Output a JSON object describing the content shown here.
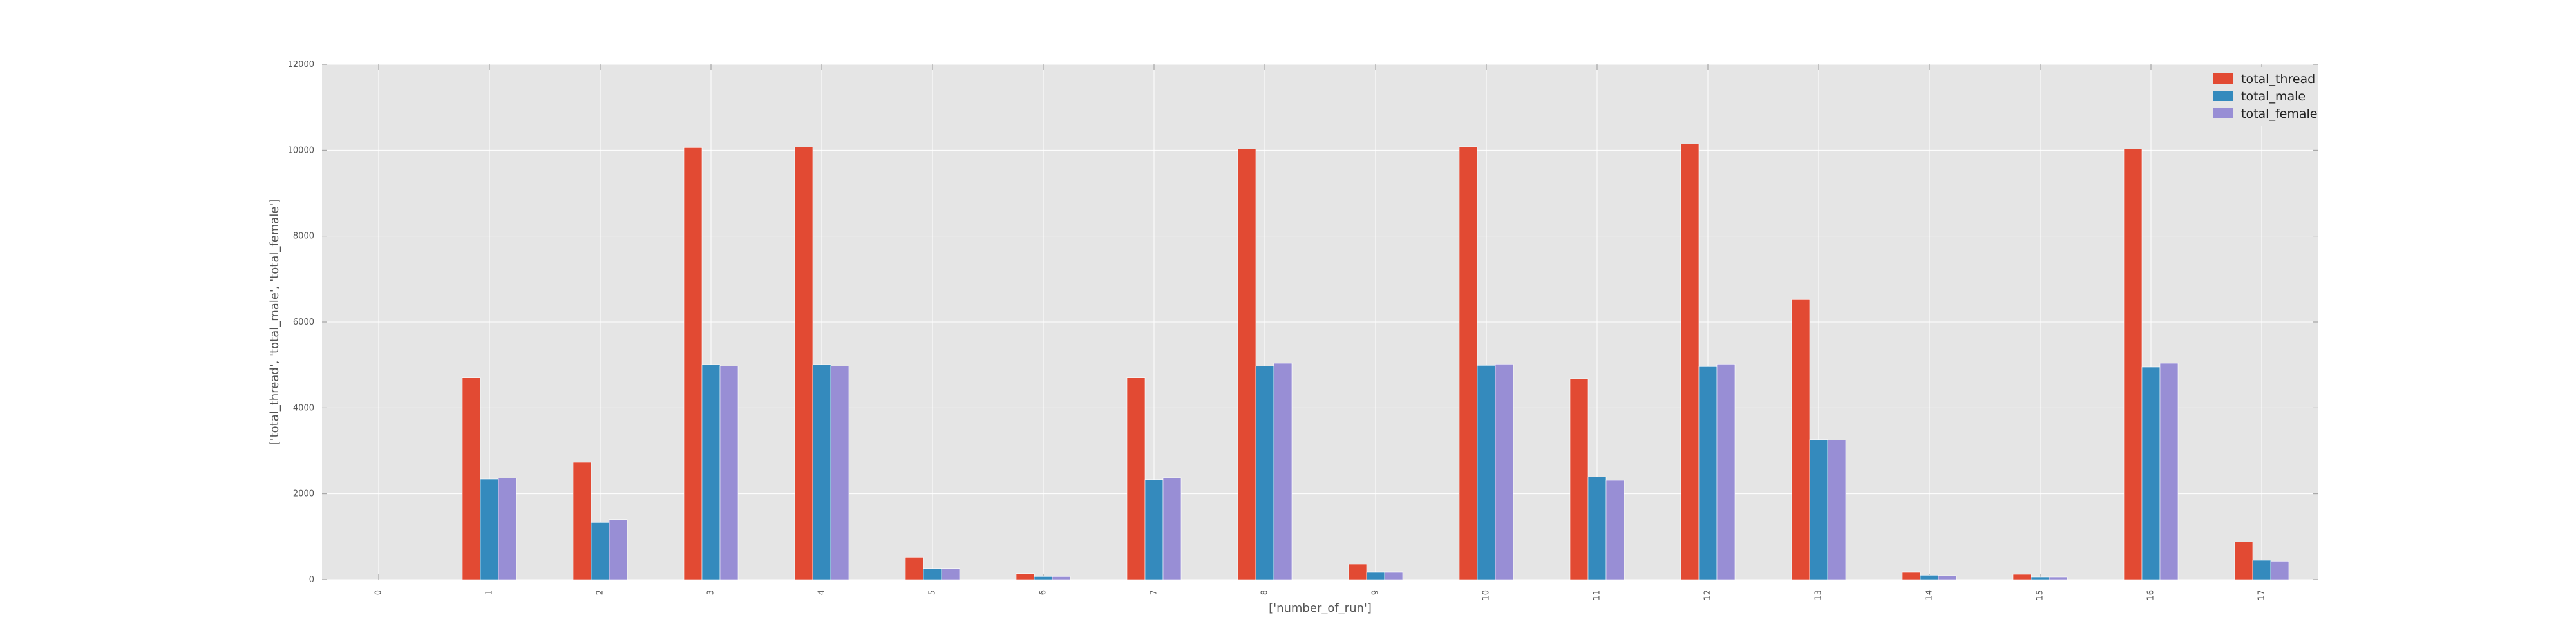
{
  "chart_data": {
    "type": "bar",
    "title": "",
    "xlabel": "['number_of_run']",
    "ylabel": "['total_thread', 'total_male', 'total_female']",
    "ylim": [
      0,
      12000
    ],
    "yticks": [
      0,
      2000,
      4000,
      6000,
      8000,
      10000,
      12000
    ],
    "categories": [
      "0",
      "1",
      "2",
      "3",
      "4",
      "5",
      "6",
      "7",
      "8",
      "9",
      "10",
      "11",
      "12",
      "13",
      "14",
      "15",
      "16",
      "17"
    ],
    "grid": true,
    "legend_position": "top-right",
    "series": [
      {
        "name": "total_thread",
        "color": "#E24A33",
        "values": [
          0,
          4700,
          2730,
          10060,
          10070,
          520,
          140,
          4700,
          10030,
          360,
          10080,
          4680,
          10150,
          6520,
          180,
          120,
          10030,
          880
        ]
      },
      {
        "name": "total_male",
        "color": "#348ABD",
        "values": [
          0,
          2340,
          1330,
          5010,
          5010,
          260,
          70,
          2330,
          4970,
          180,
          4990,
          2390,
          4960,
          3260,
          100,
          60,
          4950,
          450
        ]
      },
      {
        "name": "total_female",
        "color": "#988ED5",
        "values": [
          0,
          2360,
          1400,
          4970,
          4970,
          260,
          70,
          2370,
          5040,
          180,
          5020,
          2310,
          5020,
          3250,
          90,
          60,
          5040,
          430
        ]
      }
    ]
  }
}
